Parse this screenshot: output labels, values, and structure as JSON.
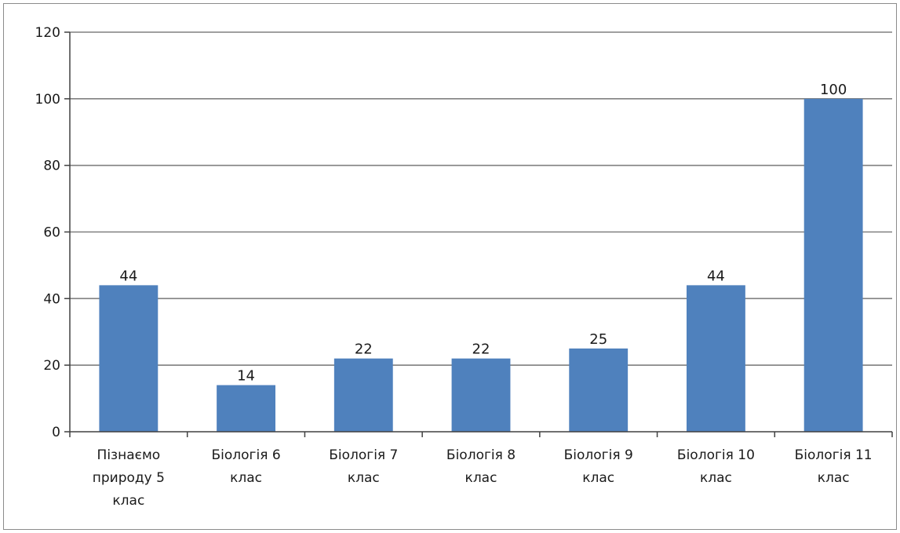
{
  "chart_data": {
    "type": "bar",
    "categories": [
      "Пізнаємо природу 5 клас",
      "Біологія 6 клас",
      "Біологія 7 клас",
      "Біологія 8 клас",
      "Біологія 9 клас",
      "Біологія 10 клас",
      "Біологія 11 клас"
    ],
    "category_lines": [
      [
        "Пізнаємо",
        "природу 5",
        "клас"
      ],
      [
        "Біологія 6",
        "клас"
      ],
      [
        "Біологія 7",
        "клас"
      ],
      [
        "Біологія 8",
        "клас"
      ],
      [
        "Біологія 9",
        "клас"
      ],
      [
        "Біологія 10",
        "клас"
      ],
      [
        "Біологія 11",
        "клас"
      ]
    ],
    "values": [
      44,
      14,
      22,
      22,
      25,
      44,
      100
    ],
    "data_labels": [
      "44",
      "14",
      "22",
      "22",
      "25",
      "44",
      "100"
    ],
    "yticks": [
      0,
      20,
      40,
      60,
      80,
      100,
      120
    ],
    "ylim": [
      0,
      120
    ],
    "title": "",
    "xlabel": "",
    "ylabel": "",
    "grid": true,
    "legend": "none",
    "bar_color": "#4f81bd",
    "gridline_color": "#808080",
    "axis_color": "#404040"
  }
}
